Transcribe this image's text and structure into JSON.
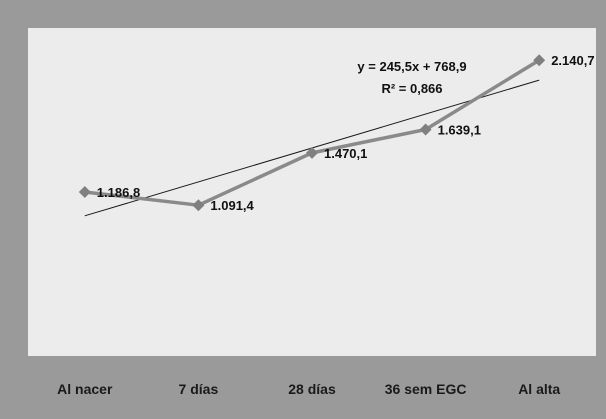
{
  "chart_data": {
    "type": "line",
    "categories": [
      "Al nacer",
      "7 días",
      "28 días",
      "36 sem EGC",
      "Al alta"
    ],
    "series": [
      {
        "values": [
          1186.8,
          1091.4,
          1470.1,
          1639.1,
          2140.7
        ]
      }
    ],
    "data_labels": [
      "1.186,8",
      "1.091,4",
      "1.470,1",
      "1.639,1",
      "2.140,7"
    ],
    "trendline": {
      "type": "linear",
      "slope": 245.5,
      "intercept": 768.9,
      "equation_text": "y = 245,5x + 768,9",
      "r2_text": "R² = 0,866"
    },
    "ylim": [
      0,
      2200
    ],
    "grid": false,
    "legend": "none",
    "colors": {
      "outer_background": "#9a9a9a",
      "plot_background": "#ececec",
      "series_line": "#8a8a8a",
      "marker": "#808080",
      "trendline": "#1a1a1a",
      "text": "#111111",
      "category_text": "#1a1a1a"
    }
  }
}
